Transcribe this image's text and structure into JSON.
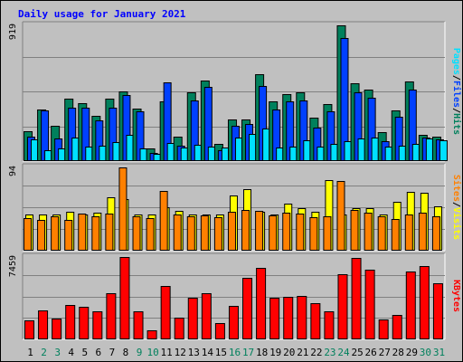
{
  "chart_data": {
    "type": "bar",
    "title": "Daily usage for January 2021",
    "x": [
      "1",
      "2",
      "3",
      "4",
      "5",
      "6",
      "7",
      "8",
      "9",
      "10",
      "11",
      "12",
      "13",
      "14",
      "15",
      "16",
      "17",
      "18",
      "19",
      "20",
      "21",
      "22",
      "23",
      "24",
      "25",
      "26",
      "27",
      "28",
      "29",
      "30",
      "31"
    ],
    "weekend_days": [
      2,
      3,
      9,
      10,
      16,
      17,
      23,
      24,
      30,
      31
    ],
    "colors": {
      "hits": "#00805c",
      "files": "#0040ff",
      "pages": "#00e0ff",
      "visits": "#ffff00",
      "sites": "#ff8000",
      "kbytes": "#ff0000",
      "title": "#0000ff",
      "weekday_label": "#000000",
      "weekend_label": "#00805c"
    },
    "panels": [
      {
        "id": "hits-files-pages",
        "ymax_label": "919",
        "ymax": 919,
        "legend": [
          "Pages",
          "Files",
          "Hits"
        ],
        "series": [
          {
            "name": "Hits",
            "key": "hits",
            "values": [
              200,
              345,
              235,
              420,
              390,
              300,
              420,
              470,
              350,
              80,
              400,
              160,
              460,
              540,
              110,
              280,
              280,
              585,
              400,
              450,
              460,
              290,
              380,
              919,
              525,
              480,
              190,
              340,
              535,
              170,
              160
            ]
          },
          {
            "name": "Files",
            "key": "files",
            "values": [
              160,
              340,
              145,
              360,
              355,
              270,
              355,
              445,
              335,
              50,
              530,
              100,
              405,
              500,
              65,
              235,
              245,
              505,
              345,
              400,
              405,
              225,
              335,
              830,
              465,
              425,
              130,
              295,
              480,
              155,
              140
            ]
          },
          {
            "name": "Pages",
            "key": "pages",
            "values": [
              140,
              65,
              80,
              155,
              95,
              100,
              125,
              170,
              80,
              45,
              115,
              85,
              105,
              90,
              85,
              155,
              180,
              215,
              85,
              95,
              135,
              90,
              110,
              130,
              150,
              155,
              95,
              100,
              110,
              145,
              135
            ]
          }
        ]
      },
      {
        "id": "visits-sites",
        "ymax_label": "94",
        "ymax": 94,
        "legend": [
          "Sites",
          "Visits"
        ],
        "series": [
          {
            "name": "Visits",
            "key": "visits",
            "values": [
              40,
              40,
              40,
              43,
              40,
              42,
              60,
              58,
              40,
              40,
              49,
              44,
              40,
              40,
              40,
              62,
              69,
              43,
              40,
              53,
              48,
              43,
              80,
              40,
              48,
              48,
              40,
              55,
              66,
              65,
              50
            ]
          },
          {
            "name": "Sites",
            "key": "sites",
            "values": [
              36,
              34,
              38,
              34,
              41,
              38,
              41,
              94,
              38,
              36,
              67,
              40,
              38,
              39,
              37,
              43,
              45,
              44,
              39,
              42,
              41,
              37,
              38,
              78,
              45,
              42,
              38,
              35,
              40,
              42,
              38
            ]
          }
        ]
      },
      {
        "id": "kbytes",
        "ymax_label": "7459",
        "ymax": 7459,
        "legend": [
          "KBytes"
        ],
        "series": [
          {
            "name": "KBytes",
            "key": "kbytes",
            "values": [
              1640,
              2580,
              1790,
              3040,
              2860,
              2450,
              4120,
              7459,
              2490,
              760,
              4800,
              1890,
              3720,
              4140,
              1370,
              2990,
              5580,
              6500,
              3720,
              3780,
              3920,
              3260,
              2480,
              5900,
              7350,
              6300,
              1700,
              2120,
              6100,
              6600,
              5050
            ]
          }
        ]
      }
    ]
  }
}
